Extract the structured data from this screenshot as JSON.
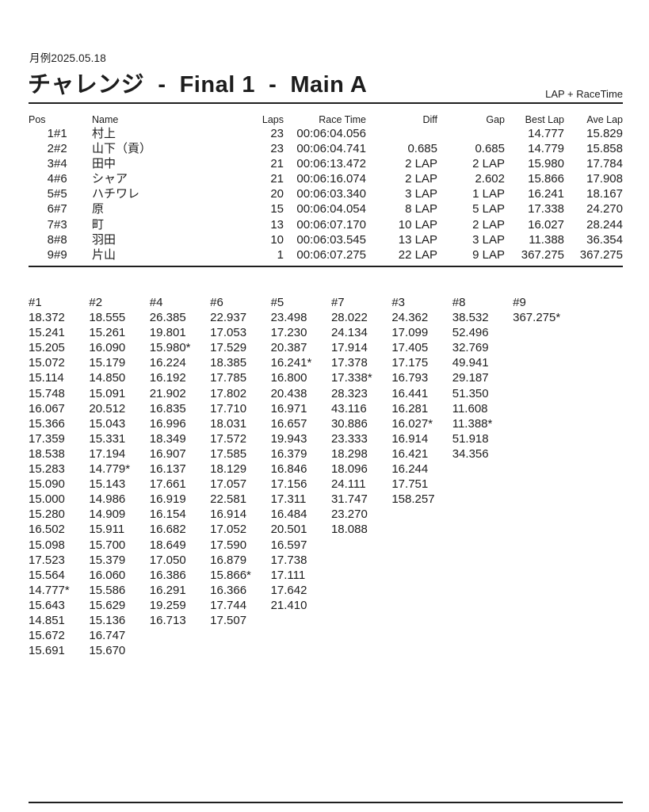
{
  "header": {
    "date": "月例2025.05.18",
    "title": "チャレンジ  -  Final 1  -  Main A",
    "subtitle": "LAP + RaceTime"
  },
  "results": {
    "columns": [
      "Pos",
      "Name",
      "Laps",
      "Race Time",
      "Diff",
      "Gap",
      "Best Lap",
      "Ave Lap"
    ],
    "rows": [
      {
        "pos": "1",
        "car": "#1",
        "name": "村上",
        "laps": "23",
        "race_time": "00:06:04.056",
        "diff": "",
        "gap": "",
        "best_lap": "14.777",
        "ave_lap": "15.829"
      },
      {
        "pos": "2",
        "car": "#2",
        "name": "山下（貢）",
        "laps": "23",
        "race_time": "00:06:04.741",
        "diff": "0.685",
        "gap": "0.685",
        "best_lap": "14.779",
        "ave_lap": "15.858"
      },
      {
        "pos": "3",
        "car": "#4",
        "name": "田中",
        "laps": "21",
        "race_time": "00:06:13.472",
        "diff": "2 LAP",
        "gap": "2 LAP",
        "best_lap": "15.980",
        "ave_lap": "17.784"
      },
      {
        "pos": "4",
        "car": "#6",
        "name": "シャア",
        "laps": "21",
        "race_time": "00:06:16.074",
        "diff": "2 LAP",
        "gap": "2.602",
        "best_lap": "15.866",
        "ave_lap": "17.908"
      },
      {
        "pos": "5",
        "car": "#5",
        "name": "ハチワレ",
        "laps": "20",
        "race_time": "00:06:03.340",
        "diff": "3 LAP",
        "gap": "1 LAP",
        "best_lap": "16.241",
        "ave_lap": "18.167"
      },
      {
        "pos": "6",
        "car": "#7",
        "name": "原",
        "laps": "15",
        "race_time": "00:06:04.054",
        "diff": "8 LAP",
        "gap": "5 LAP",
        "best_lap": "17.338",
        "ave_lap": "24.270"
      },
      {
        "pos": "7",
        "car": "#3",
        "name": "町",
        "laps": "13",
        "race_time": "00:06:07.170",
        "diff": "10 LAP",
        "gap": "2 LAP",
        "best_lap": "16.027",
        "ave_lap": "28.244"
      },
      {
        "pos": "8",
        "car": "#8",
        "name": "羽田",
        "laps": "10",
        "race_time": "00:06:03.545",
        "diff": "13 LAP",
        "gap": "3 LAP",
        "best_lap": "11.388",
        "ave_lap": "36.354"
      },
      {
        "pos": "9",
        "car": "#9",
        "name": "片山",
        "laps": "1",
        "race_time": "00:06:07.275",
        "diff": "22 LAP",
        "gap": "9 LAP",
        "best_lap": "367.275",
        "ave_lap": "367.275"
      }
    ]
  },
  "lap_chart": {
    "columns": [
      {
        "car": "#1",
        "laps": [
          "18.372",
          "15.241",
          "15.205",
          "15.072",
          "15.114",
          "15.748",
          "16.067",
          "15.366",
          "17.359",
          "18.538",
          "15.283",
          "15.090",
          "15.000",
          "15.280",
          "16.502",
          "15.098",
          "17.523",
          "15.564",
          "14.777*",
          "15.643",
          "14.851",
          "15.672",
          "15.691"
        ]
      },
      {
        "car": "#2",
        "laps": [
          "18.555",
          "15.261",
          "16.090",
          "15.179",
          "14.850",
          "15.091",
          "20.512",
          "15.043",
          "15.331",
          "17.194",
          "14.779*",
          "15.143",
          "14.986",
          "14.909",
          "15.911",
          "15.700",
          "15.379",
          "16.060",
          "15.586",
          "15.629",
          "15.136",
          "16.747",
          "15.670"
        ]
      },
      {
        "car": "#4",
        "laps": [
          "26.385",
          "19.801",
          "15.980*",
          "16.224",
          "16.192",
          "21.902",
          "16.835",
          "16.996",
          "18.349",
          "16.907",
          "16.137",
          "17.661",
          "16.919",
          "16.154",
          "16.682",
          "18.649",
          "17.050",
          "16.386",
          "16.291",
          "19.259",
          "16.713"
        ]
      },
      {
        "car": "#6",
        "laps": [
          "22.937",
          "17.053",
          "17.529",
          "18.385",
          "17.785",
          "17.802",
          "17.710",
          "18.031",
          "17.572",
          "17.585",
          "18.129",
          "17.057",
          "22.581",
          "16.914",
          "17.052",
          "17.590",
          "16.879",
          "15.866*",
          "16.366",
          "17.744",
          "17.507"
        ]
      },
      {
        "car": "#5",
        "laps": [
          "23.498",
          "17.230",
          "20.387",
          "16.241*",
          "16.800",
          "20.438",
          "16.971",
          "16.657",
          "19.943",
          "16.379",
          "16.846",
          "17.156",
          "17.311",
          "16.484",
          "20.501",
          "16.597",
          "17.738",
          "17.111",
          "17.642",
          "21.410"
        ]
      },
      {
        "car": "#7",
        "laps": [
          "28.022",
          "24.134",
          "17.914",
          "17.378",
          "17.338*",
          "28.323",
          "43.116",
          "30.886",
          "23.333",
          "18.298",
          "18.096",
          "24.111",
          "31.747",
          "23.270",
          "18.088"
        ]
      },
      {
        "car": "#3",
        "laps": [
          "24.362",
          "17.099",
          "17.405",
          "17.175",
          "16.793",
          "16.441",
          "16.281",
          "16.027*",
          "16.914",
          "16.421",
          "16.244",
          "17.751",
          "158.257"
        ]
      },
      {
        "car": "#8",
        "laps": [
          "38.532",
          "52.496",
          "32.769",
          "49.941",
          "29.187",
          "51.350",
          "11.608",
          "11.388*",
          "51.918",
          "34.356"
        ]
      },
      {
        "car": "#9",
        "laps": [
          "367.275*"
        ]
      }
    ]
  }
}
